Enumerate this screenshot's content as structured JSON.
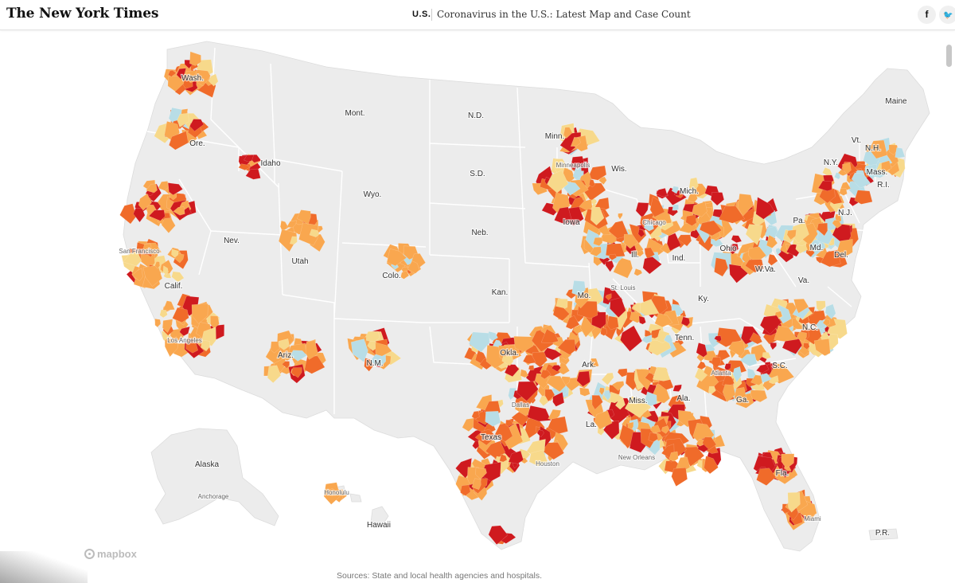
{
  "header": {
    "logo": "The New York Times",
    "section": "U.S.",
    "headline": "Coronavirus in the U.S.: Latest Map and Case Count",
    "share_facebook": "f",
    "share_twitter": "🐦"
  },
  "map": {
    "colors": {
      "land": "#ececec",
      "border": "#ffffff",
      "low": "#b8dde6",
      "light": "#f7d98b",
      "medium": "#f9a74f",
      "high": "#f06b2a",
      "severe": "#cf1a1f"
    },
    "labels": {
      "wash": "Wash.",
      "ore": "Ore.",
      "calif": "Calif.",
      "nev": "Nev.",
      "idaho": "Idaho",
      "mont": "Mont.",
      "wyo": "Wyo.",
      "utah": "Utah",
      "ariz": "Ariz.",
      "colo": "Colo.",
      "nm": "N.M.",
      "nd": "N.D.",
      "sd": "S.D.",
      "neb": "Neb.",
      "kan": "Kan.",
      "okla": "Okla.",
      "texas": "Texas",
      "minn": "Minn.",
      "iowa": "Iowa",
      "mo": "Mo.",
      "ark": "Ark.",
      "la": "La.",
      "wis": "Wis.",
      "ill": "Ill.",
      "mich": "Mich.",
      "ind": "Ind.",
      "ohio": "Ohio",
      "ky": "Ky.",
      "tenn": "Tenn.",
      "miss": "Miss.",
      "ala": "Ala.",
      "ga": "Ga.",
      "fla": "Fla.",
      "sc": "S.C.",
      "nc": "N.C.",
      "va": "Va.",
      "wva": "W.Va.",
      "pa": "Pa.",
      "ny": "N.Y.",
      "nj": "N.J.",
      "md": "Md.",
      "del": "Del.",
      "maine": "Maine",
      "vt": "Vt.",
      "nh": "N.H.",
      "mass": "Mass.",
      "ri": "R.I.",
      "alaska": "Alaska",
      "hawaii": "Hawaii",
      "pr": "P.R."
    },
    "cities": {
      "san_francisco": "San Francisco",
      "los_angeles": "Los Angeles",
      "minneapolis": "Minneapolis",
      "chicago": "Chicago",
      "st_louis": "St. Louis",
      "dallas": "Dallas",
      "houston": "Houston",
      "new_orleans": "New Orleans",
      "atlanta": "Atlanta",
      "miami": "Miami",
      "anchorage": "Anchorage",
      "honolulu": "Honolulu"
    },
    "attribution": "mapbox"
  },
  "footer": {
    "source": "Sources: State and local health agencies and hospitals."
  }
}
